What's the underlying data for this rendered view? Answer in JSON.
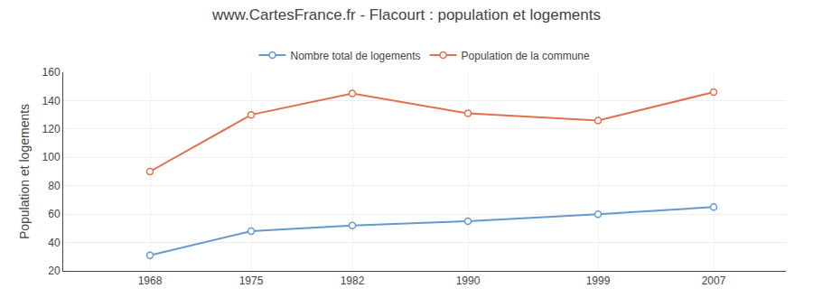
{
  "chart_data": {
    "type": "line",
    "title": "www.CartesFrance.fr - Flacourt : population et logements",
    "ylabel": "Population et logements",
    "x": [
      1968,
      1975,
      1982,
      1990,
      1999,
      2007
    ],
    "series": [
      {
        "name": "Nombre total de logements",
        "color": "#6699cc",
        "values": [
          31,
          48,
          52,
          55,
          60,
          65
        ]
      },
      {
        "name": "Population de la commune",
        "color": "#e07050",
        "values": [
          90,
          130,
          145,
          131,
          126,
          146
        ]
      }
    ],
    "xlim": [
      1962,
      2012
    ],
    "xticks": [
      1968,
      1975,
      1982,
      1990,
      1999,
      2007
    ],
    "ylim": [
      20,
      160
    ],
    "yticks": [
      20,
      40,
      60,
      80,
      100,
      120,
      140,
      160
    ],
    "grid": true,
    "legend": "top",
    "marker": "circle"
  }
}
